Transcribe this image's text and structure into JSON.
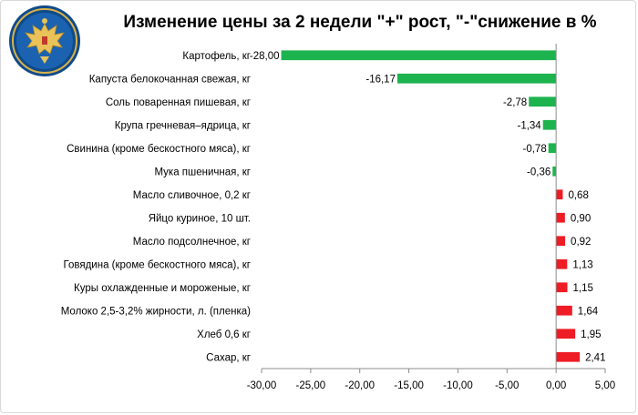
{
  "chart_data": {
    "type": "bar",
    "orientation": "horizontal",
    "title": "Изменение цены за 2 недели \"+\" рост, \"-\"снижение в %",
    "categories": [
      "Картофель, кг",
      "Капуста белокочанная свежая, кг",
      "Соль поваренная пишевая, кг",
      "Крупа гречневая–ядрица, кг",
      "Свинина (кроме бескостного мяса), кг",
      "Мука пшеничная, кг",
      "Масло сливочное, 0,2 кг",
      "Яйцо куриное, 10 шт.",
      "Масло подсолнечное, кг",
      "Говядина (кроме бескостного мяса), кг",
      "Куры охлажденные и мороженые, кг",
      "Молоко 2,5-3,2% жирности, л. (пленка)",
      "Хлеб  0,6 кг",
      "Сахар, кг"
    ],
    "values": [
      -28.0,
      -16.17,
      -2.78,
      -1.34,
      -0.78,
      -0.36,
      0.68,
      0.9,
      0.92,
      1.13,
      1.15,
      1.64,
      1.95,
      2.41
    ],
    "value_labels": [
      "-28,00",
      "-16,17",
      "-2,78",
      "-1,34",
      "-0,78",
      "-0,36",
      "0,68",
      "0,90",
      "0,92",
      "1,13",
      "1,15",
      "1,64",
      "1,95",
      "2,41"
    ],
    "xlim": [
      -30,
      5
    ],
    "x_ticks": [
      -30,
      -25,
      -20,
      -15,
      -10,
      -5,
      0,
      5
    ],
    "x_tick_labels": [
      "-30,00",
      "-25,00",
      "-20,00",
      "-15,00",
      "-10,00",
      "-5,00",
      "0,00",
      "5,00"
    ],
    "colors": {
      "negative": "#1db34f",
      "positive": "#ee1c25"
    },
    "grid": false
  },
  "emblem": {
    "icon": "double-headed-eagle-emblem"
  }
}
